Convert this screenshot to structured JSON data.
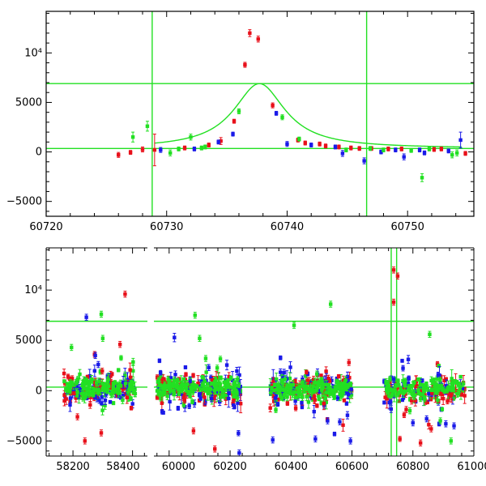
{
  "colors": {
    "red": "#e8101a",
    "blue": "#1a1ae8",
    "green": "#22e022",
    "frame": "#000000"
  },
  "chart_data": [
    {
      "type": "scatter",
      "panel": "top",
      "title": "",
      "xlabel": "",
      "ylabel": "",
      "xlim": [
        60720,
        60755.5
      ],
      "ylim": [
        -6500,
        14200
      ],
      "x_ticks": [
        60720,
        60730,
        60740,
        60750
      ],
      "x_tick_labels": [
        "60720",
        "60730",
        "60740",
        "60750"
      ],
      "y_ticks": [
        -5000,
        0,
        5000,
        10000
      ],
      "y_tick_labels": [
        "−5000",
        "0",
        "5000",
        "10⁴"
      ],
      "hlines": [
        6900,
        350
      ],
      "vlines": [
        60728.8,
        60746.6
      ],
      "model_curve": {
        "t0": 60737.7,
        "baseline": 350,
        "peak": 6900,
        "width": 2.6
      },
      "series": [
        {
          "color": "red",
          "points": [
            [
              60726.0,
              -300,
              250
            ],
            [
              60727.0,
              -50,
              200
            ],
            [
              60728.0,
              250,
              250
            ],
            [
              60729.0,
              200,
              1600
            ],
            [
              60731.5,
              400,
              200
            ],
            [
              60733.5,
              700,
              200
            ],
            [
              60734.5,
              1100,
              350
            ],
            [
              60735.6,
              3100,
              200
            ],
            [
              60736.5,
              8800,
              250
            ],
            [
              60736.9,
              12000,
              350
            ],
            [
              60737.6,
              11400,
              300
            ],
            [
              60738.8,
              4700,
              250
            ],
            [
              60740.9,
              1200,
              200
            ],
            [
              60741.5,
              900,
              200
            ],
            [
              60742.7,
              800,
              200
            ],
            [
              60743.2,
              600,
              200
            ],
            [
              60744.3,
              500,
              200
            ],
            [
              60745.3,
              400,
              200
            ],
            [
              60746.0,
              350,
              200
            ],
            [
              60747.0,
              350,
              200
            ],
            [
              60748.4,
              300,
              200
            ],
            [
              60749.5,
              300,
              200
            ],
            [
              60752.2,
              250,
              200
            ],
            [
              60752.8,
              300,
              200
            ],
            [
              60754.8,
              -150,
              200
            ]
          ]
        },
        {
          "color": "blue",
          "points": [
            [
              60729.5,
              200,
              250
            ],
            [
              60732.3,
              300,
              200
            ],
            [
              60734.3,
              1000,
              200
            ],
            [
              60735.5,
              1800,
              200
            ],
            [
              60739.1,
              3900,
              200
            ],
            [
              60740.0,
              800,
              250
            ],
            [
              60742.0,
              700,
              200
            ],
            [
              60744.0,
              500,
              200
            ],
            [
              60744.6,
              -150,
              300
            ],
            [
              60746.4,
              -900,
              300
            ],
            [
              60747.8,
              0,
              200
            ],
            [
              60749.0,
              200,
              200
            ],
            [
              60749.7,
              -500,
              300
            ],
            [
              60751.0,
              200,
              200
            ],
            [
              60751.4,
              -100,
              200
            ],
            [
              60753.4,
              100,
              200
            ],
            [
              60754.4,
              1200,
              800
            ]
          ]
        },
        {
          "color": "green",
          "points": [
            [
              60727.2,
              1500,
              500
            ],
            [
              60728.4,
              2600,
              500
            ],
            [
              60730.3,
              -100,
              300
            ],
            [
              60731.0,
              300,
              200
            ],
            [
              60732.0,
              1500,
              300
            ],
            [
              60732.9,
              400,
              200
            ],
            [
              60733.2,
              500,
              200
            ],
            [
              60736.0,
              4100,
              250
            ],
            [
              60739.6,
              3500,
              250
            ],
            [
              60741.0,
              1300,
              200
            ],
            [
              60744.9,
              200,
              200
            ],
            [
              60746.9,
              350,
              200
            ],
            [
              60748.0,
              200,
              200
            ],
            [
              60750.3,
              150,
              200
            ],
            [
              60751.2,
              -2600,
              400
            ],
            [
              60751.8,
              300,
              200
            ],
            [
              60753.7,
              -300,
              300
            ],
            [
              60754.1,
              -100,
              300
            ]
          ]
        }
      ]
    },
    {
      "type": "scatter",
      "panel": "bottom",
      "title": "",
      "xlabel": "",
      "ylabel": "",
      "xlim": [
        58110,
        61000
      ],
      "ylim": [
        -6500,
        14200
      ],
      "x_break": [
        58450,
        59950
      ],
      "x_ticks": [
        58200,
        58400,
        60000,
        60200,
        60400,
        60600,
        60800,
        61000
      ],
      "x_tick_labels": [
        "58200",
        "58400",
        "60000",
        "60200",
        "60400",
        "60600",
        "60800",
        "61000"
      ],
      "y_ticks": [
        -5000,
        0,
        5000,
        10000
      ],
      "y_tick_labels": [
        "−5000",
        "0",
        "5000",
        "10⁴"
      ],
      "hlines": [
        6900,
        350
      ],
      "vlines": [
        60728.8,
        60746.6
      ],
      "seasons": [
        {
          "start": 58170,
          "end": 58410,
          "n": 170
        },
        {
          "start": 59960,
          "end": 60235,
          "n": 200
        },
        {
          "start": 60330,
          "end": 60600,
          "n": 200
        },
        {
          "start": 60705,
          "end": 60970,
          "n": 170
        }
      ],
      "outliers": [
        {
          "color": "red",
          "points": [
            [
              58375,
              9600
            ],
            [
              58358,
              4600
            ],
            [
              58295,
              -4200
            ],
            [
              58240,
              -5000
            ],
            [
              58215,
              -2600
            ],
            [
              60150,
              -5800
            ],
            [
              60080,
              -4000
            ],
            [
              60590,
              2800
            ],
            [
              60737,
              8800
            ],
            [
              60737,
              12000
            ],
            [
              60750,
              11400
            ],
            [
              60860,
              -3800
            ],
            [
              60825,
              -5200
            ]
          ]
        },
        {
          "color": "blue",
          "points": [
            [
              58245,
              7300
            ],
            [
              58285,
              2600
            ],
            [
              58275,
              3500
            ],
            [
              60130,
              2300
            ],
            [
              60230,
              -6200
            ],
            [
              60340,
              -4900
            ],
            [
              60480,
              -4800
            ],
            [
              60520,
              -3000
            ],
            [
              60560,
              -3100
            ],
            [
              60595,
              -5000
            ],
            [
              60800,
              -3200
            ],
            [
              60845,
              -2800
            ],
            [
              60908,
              -3300
            ],
            [
              60935,
              -3500
            ]
          ]
        },
        {
          "color": "green",
          "points": [
            [
              58195,
              4300
            ],
            [
              58295,
              7600
            ],
            [
              58300,
              5200
            ],
            [
              60085,
              7500
            ],
            [
              60100,
              5200
            ],
            [
              60120,
              3200
            ],
            [
              60410,
              6500
            ],
            [
              60530,
              8600
            ],
            [
              60855,
              5600
            ],
            [
              60925,
              -5000
            ],
            [
              60790,
              -2000
            ],
            [
              60890,
              -3000
            ]
          ]
        }
      ]
    }
  ]
}
